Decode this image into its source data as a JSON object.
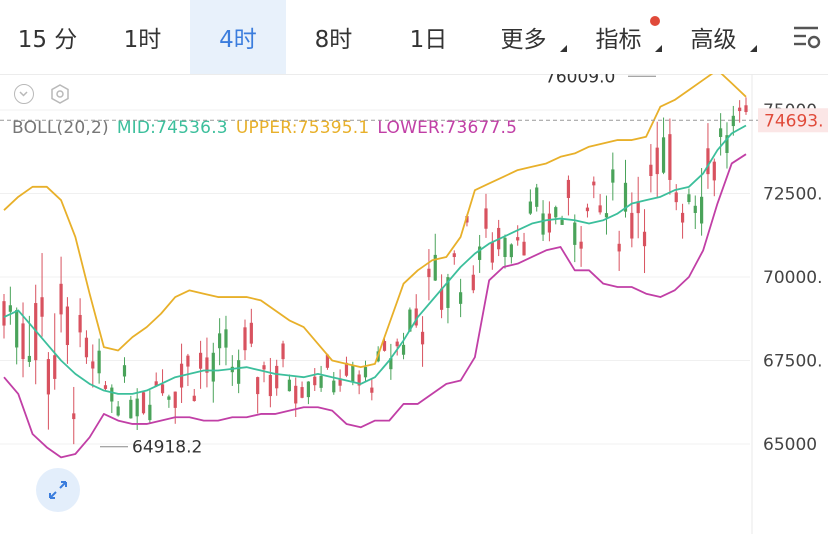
{
  "tabs": [
    {
      "label": "15 分",
      "active": false,
      "dropdown": false,
      "badge": false
    },
    {
      "label": "1时",
      "active": false,
      "dropdown": false,
      "badge": false
    },
    {
      "label": "4时",
      "active": true,
      "dropdown": false,
      "badge": false
    },
    {
      "label": "8时",
      "active": false,
      "dropdown": false,
      "badge": false
    },
    {
      "label": "1日",
      "active": false,
      "dropdown": false,
      "badge": false
    },
    {
      "label": "更多",
      "active": false,
      "dropdown": true,
      "badge": false
    },
    {
      "label": "指标",
      "active": false,
      "dropdown": true,
      "badge": true
    },
    {
      "label": "高级",
      "active": false,
      "dropdown": true,
      "badge": false
    }
  ],
  "icons": {
    "menu": "settings-list-icon",
    "tool1": "chevron-down-icon",
    "tool2": "hexagon-settings-icon",
    "expand": "expand-arrows-icon"
  },
  "indicator": {
    "name": "BOLL(20,2)",
    "mid": "MID:74536.3",
    "upper": "UPPER:75395.1",
    "lower": "LOWER:73677.5"
  },
  "colors": {
    "accent": "#3b7ddd",
    "mid": "#3cbf9c",
    "upper": "#e8b02a",
    "lower": "#c13fa6",
    "up": "#4aa35a",
    "down": "#d8525f",
    "current": "#e04a3a"
  },
  "chart_data": {
    "type": "line",
    "title": "",
    "y_ticks": [
      "75000",
      "72500.",
      "70000.",
      "67500.",
      "65000"
    ],
    "ylim": [
      64300,
      77100
    ],
    "current_price": "74693.",
    "max_label": "76009.0",
    "min_label": "64918.2",
    "series": [
      {
        "name": "MID",
        "values": [
          68800,
          69000,
          68500,
          68000,
          67500,
          67100,
          66800,
          66600,
          66500,
          66500,
          66600,
          66800,
          67000,
          67100,
          67200,
          67200,
          67250,
          67300,
          67200,
          67100,
          67050,
          67000,
          67100,
          67000,
          66900,
          66800,
          67000,
          67500,
          68100,
          68800,
          69300,
          69800,
          70300,
          70700,
          71000,
          71200,
          71400,
          71600,
          71700,
          71750,
          71700,
          71600,
          71700,
          71900,
          72200,
          72300,
          72400,
          72600,
          72700,
          73100,
          73800,
          74300,
          74536
        ]
      },
      {
        "name": "UPPER",
        "values": [
          72000,
          72400,
          72700,
          72700,
          72300,
          71200,
          69500,
          67900,
          67800,
          68200,
          68500,
          68900,
          69400,
          69600,
          69500,
          69400,
          69400,
          69400,
          69300,
          69000,
          68700,
          68500,
          68000,
          67500,
          67400,
          67300,
          67400,
          68600,
          69800,
          70200,
          70500,
          70600,
          71200,
          72600,
          72800,
          73000,
          73200,
          73300,
          73400,
          73600,
          73700,
          73900,
          74000,
          74100,
          74100,
          74200,
          75100,
          75300,
          75600,
          75900,
          76200,
          75800,
          75395
        ]
      },
      {
        "name": "LOWER",
        "values": [
          67000,
          66500,
          65300,
          64900,
          64600,
          64700,
          65200,
          65900,
          65700,
          65600,
          65600,
          65700,
          65800,
          65800,
          65700,
          65700,
          65800,
          65800,
          65900,
          65900,
          66000,
          66100,
          66100,
          66000,
          65600,
          65500,
          65700,
          65700,
          66200,
          66200,
          66500,
          66800,
          66900,
          67600,
          69900,
          70300,
          70400,
          70600,
          70800,
          70900,
          70200,
          70200,
          69800,
          69700,
          69700,
          69500,
          69400,
          69600,
          70000,
          70800,
          72200,
          73400,
          73677
        ]
      }
    ]
  }
}
